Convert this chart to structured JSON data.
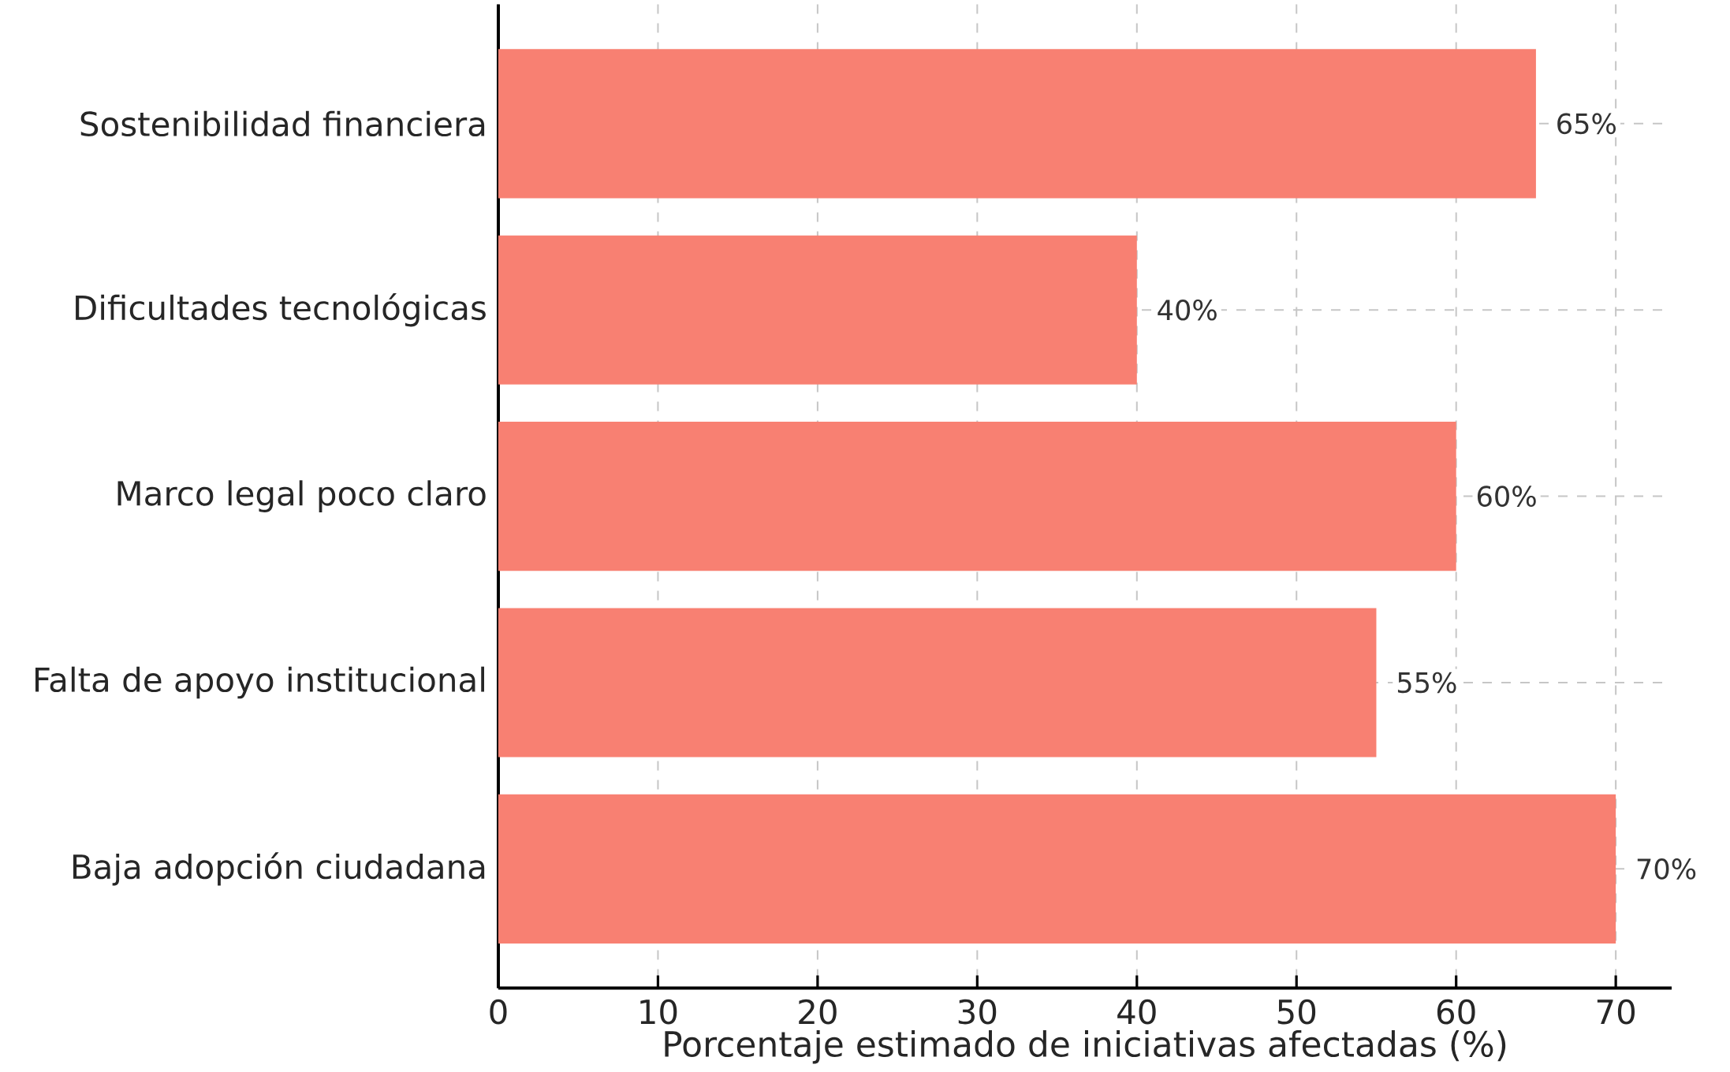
{
  "chart_data": {
    "type": "bar",
    "orientation": "horizontal",
    "xlabel": "Porcentaje estimado de iniciativas afectadas (%)",
    "categories": [
      "Sostenibilidad financiera",
      "Dificultades tecnológicas",
      "Marco legal poco claro",
      "Falta de apoyo institucional",
      "Baja adopción ciudadana"
    ],
    "values": [
      65,
      40,
      60,
      55,
      70
    ],
    "value_labels": [
      "65%",
      "40%",
      "60%",
      "55%",
      "70%"
    ],
    "color": "#f88072",
    "xlim": [
      0,
      73.5
    ],
    "xticks": [
      0,
      10,
      20,
      30,
      40,
      50,
      60,
      70
    ],
    "grid": true
  }
}
